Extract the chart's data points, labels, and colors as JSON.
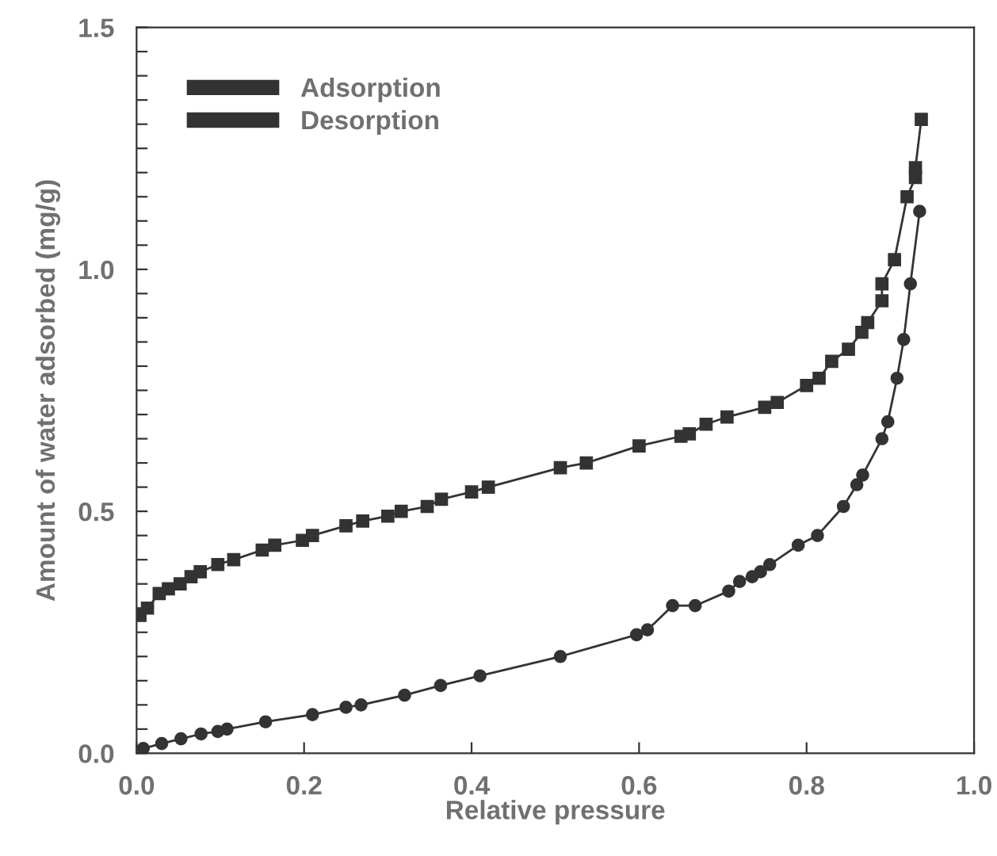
{
  "chart_data": {
    "type": "line",
    "xlabel": "Relative pressure",
    "ylabel": "Amount of water adsorbed (mg/g)",
    "xlim": [
      0.0,
      1.0
    ],
    "ylim": [
      0.0,
      1.5
    ],
    "xticks": [
      {
        "value": 0.0,
        "label": "0.0"
      },
      0.2,
      0.4,
      0.6,
      0.8,
      {
        "value": 1.0,
        "label": "1.0"
      }
    ],
    "yticks": [
      {
        "value": 0.0,
        "label": "0.0"
      },
      {
        "value": 0.05,
        "label": null
      },
      {
        "value": 0.1,
        "label": null
      },
      {
        "value": 0.15,
        "label": null
      },
      {
        "value": 0.2,
        "label": null
      },
      {
        "value": 0.25,
        "label": null
      },
      {
        "value": 0.3,
        "label": null
      },
      {
        "value": 0.35,
        "label": null
      },
      {
        "value": 0.4,
        "label": null
      },
      {
        "value": 0.45,
        "label": null
      },
      0.5,
      {
        "value": 0.55,
        "label": null
      },
      {
        "value": 0.6,
        "label": null
      },
      {
        "value": 0.65,
        "label": null
      },
      {
        "value": 0.7,
        "label": null
      },
      {
        "value": 0.75,
        "label": null
      },
      {
        "value": 0.8,
        "label": null
      },
      {
        "value": 0.85,
        "label": null
      },
      {
        "value": 0.9,
        "label": null
      },
      {
        "value": 0.95,
        "label": null
      },
      {
        "value": 1.0,
        "label": "1.0"
      },
      {
        "value": 1.05,
        "label": null
      },
      {
        "value": 1.1,
        "label": null
      },
      {
        "value": 1.15,
        "label": null
      },
      {
        "value": 1.2,
        "label": null
      },
      {
        "value": 1.25,
        "label": null
      },
      {
        "value": 1.3,
        "label": null
      },
      {
        "value": 1.35,
        "label": null
      },
      {
        "value": 1.4,
        "label": null
      },
      {
        "value": 1.45,
        "label": null
      },
      1.5
    ],
    "grid": false,
    "legend": "top left",
    "line_style": "solid",
    "series": [
      {
        "name": "Adsorption",
        "color": "#333333",
        "marker": "circle",
        "x": [
          0.008,
          0.03,
          0.053,
          0.077,
          0.097,
          0.108,
          0.154,
          0.21,
          0.25,
          0.268,
          0.32,
          0.363,
          0.41,
          0.506,
          0.597,
          0.61,
          0.64,
          0.667,
          0.707,
          0.72,
          0.735,
          0.745,
          0.756,
          0.79,
          0.813,
          0.844,
          0.86,
          0.867,
          0.89,
          0.897,
          0.908,
          0.916,
          0.924,
          0.935
        ],
        "values": [
          0.01,
          0.02,
          0.03,
          0.04,
          0.045,
          0.05,
          0.065,
          0.08,
          0.095,
          0.1,
          0.12,
          0.14,
          0.16,
          0.2,
          0.245,
          0.255,
          0.305,
          0.305,
          0.335,
          0.355,
          0.365,
          0.375,
          0.39,
          0.43,
          0.45,
          0.51,
          0.555,
          0.575,
          0.65,
          0.685,
          0.775,
          0.855,
          0.97,
          1.12
        ]
      },
      {
        "name": "Desorption",
        "color": "#333333",
        "marker": "square",
        "x": [
          0.004,
          0.013,
          0.027,
          0.038,
          0.052,
          0.065,
          0.076,
          0.097,
          0.116,
          0.15,
          0.165,
          0.198,
          0.21,
          0.25,
          0.27,
          0.3,
          0.316,
          0.347,
          0.364,
          0.4,
          0.42,
          0.506,
          0.537,
          0.6,
          0.65,
          0.66,
          0.68,
          0.705,
          0.75,
          0.765,
          0.8,
          0.815,
          0.83,
          0.85,
          0.866,
          0.873,
          0.89,
          0.89,
          0.905,
          0.92,
          0.93,
          0.93,
          0.937
        ],
        "values": [
          0.285,
          0.3,
          0.33,
          0.34,
          0.35,
          0.365,
          0.375,
          0.39,
          0.4,
          0.42,
          0.43,
          0.44,
          0.45,
          0.47,
          0.48,
          0.49,
          0.5,
          0.51,
          0.525,
          0.54,
          0.55,
          0.59,
          0.6,
          0.635,
          0.655,
          0.66,
          0.68,
          0.695,
          0.715,
          0.725,
          0.76,
          0.775,
          0.81,
          0.835,
          0.87,
          0.89,
          0.935,
          0.97,
          1.02,
          1.15,
          1.19,
          1.21,
          1.31
        ]
      }
    ]
  }
}
